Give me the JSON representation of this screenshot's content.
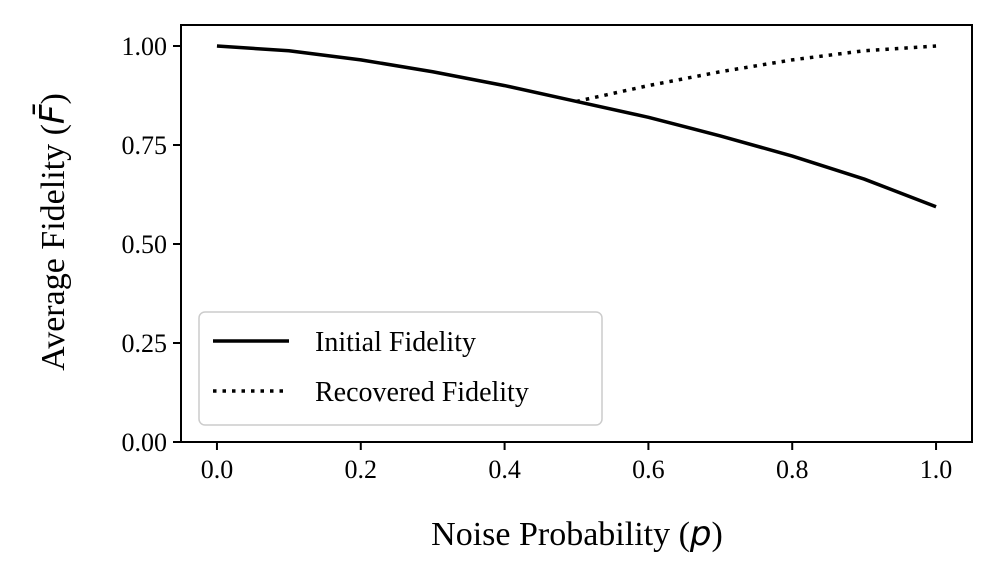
{
  "chart_data": {
    "type": "line",
    "xlabel": "Noise Probability",
    "xlabel_var": "p",
    "ylabel": "Average Fidelity",
    "ylabel_var": "F̄",
    "xlim": [
      -0.05,
      1.05
    ],
    "ylim": [
      0.0,
      1.0
    ],
    "x_ticks": [
      0.0,
      0.2,
      0.4,
      0.6,
      0.8,
      1.0
    ],
    "x_tick_labels": [
      "0.0",
      "0.2",
      "0.4",
      "0.6",
      "0.8",
      "1.0"
    ],
    "y_ticks": [
      0.0,
      0.25,
      0.5,
      0.75,
      1.0
    ],
    "y_tick_labels": [
      "0.00",
      "0.25",
      "0.50",
      "0.75",
      "1.00"
    ],
    "grid": false,
    "legend_position": "lower-left",
    "series": [
      {
        "name": "Initial Fidelity",
        "style": "solid",
        "color": "#000000",
        "x": [
          0.0,
          0.1,
          0.2,
          0.3,
          0.4,
          0.5,
          0.6,
          0.7,
          0.8,
          0.9,
          1.0
        ],
        "y": [
          1.0,
          0.988,
          0.965,
          0.935,
          0.9,
          0.86,
          0.82,
          0.773,
          0.722,
          0.664,
          0.594
        ]
      },
      {
        "name": "Recovered Fidelity",
        "style": "dotted",
        "color": "#000000",
        "x": [
          0.5,
          0.6,
          0.7,
          0.8,
          0.9,
          1.0
        ],
        "y": [
          0.86,
          0.9,
          0.935,
          0.965,
          0.988,
          1.0
        ]
      }
    ]
  }
}
